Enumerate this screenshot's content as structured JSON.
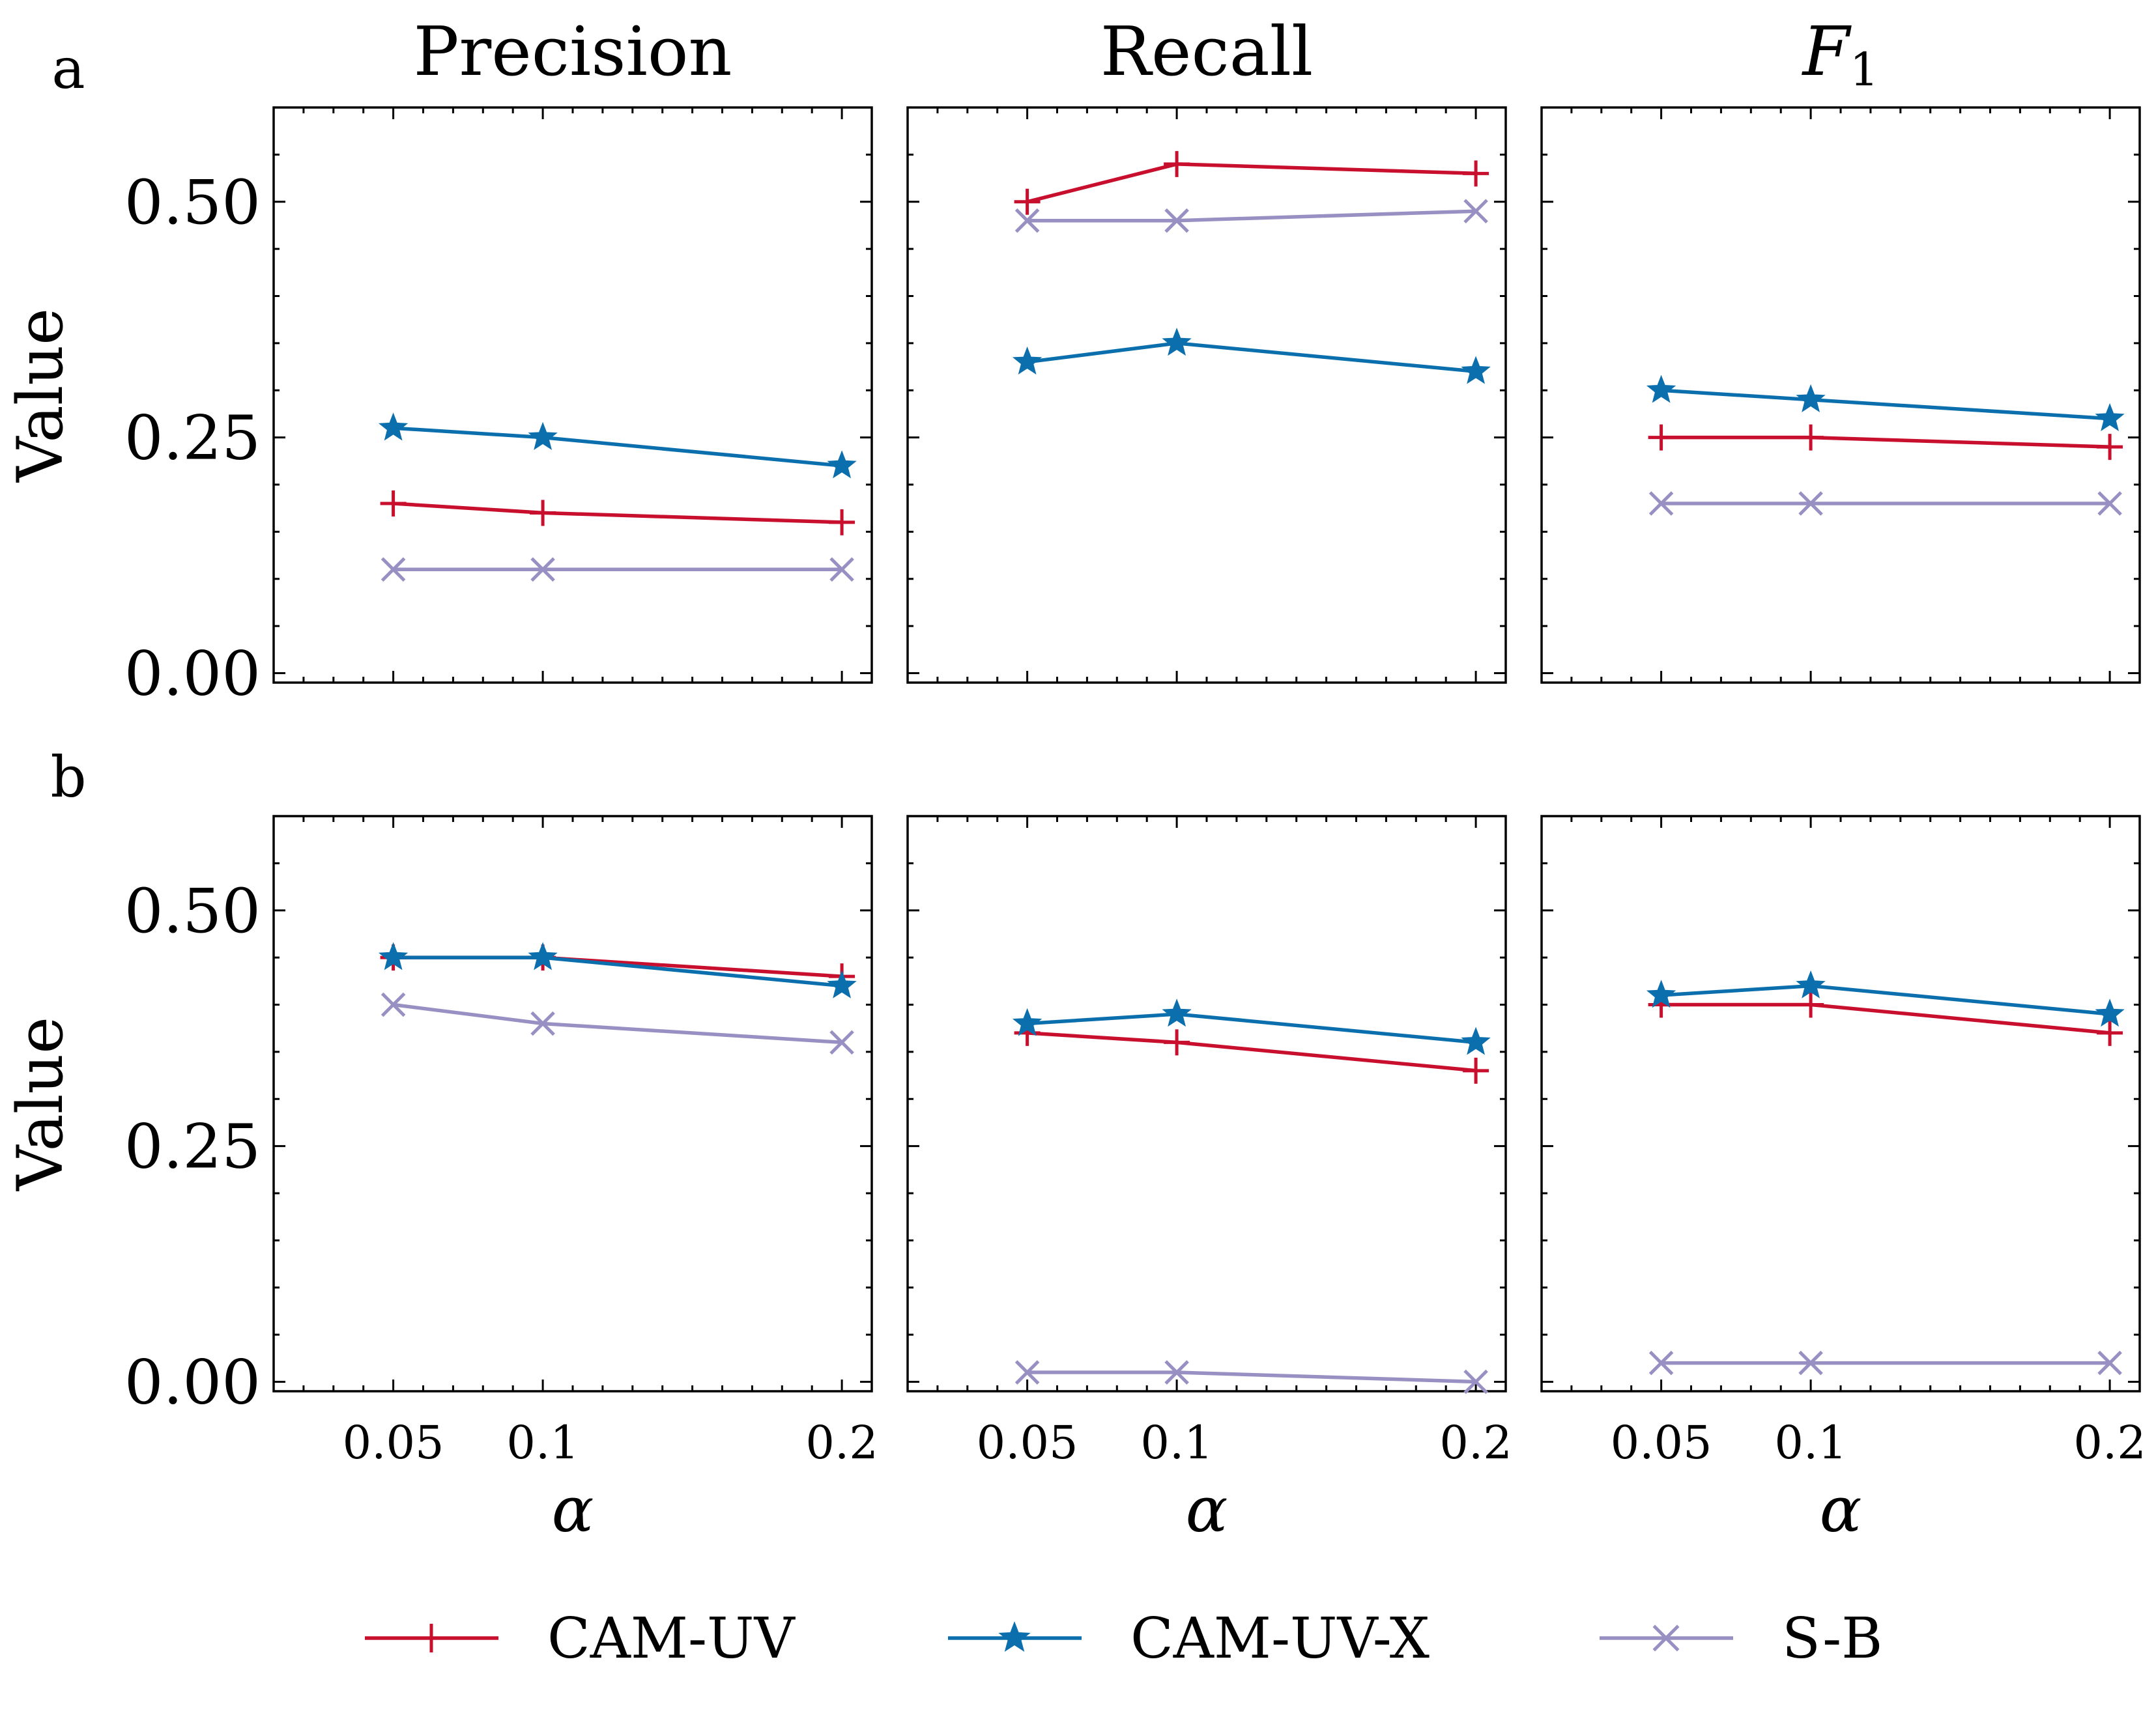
{
  "figure": {
    "row_labels": [
      "a",
      "b"
    ],
    "column_titles": [
      "Precision",
      "Recall",
      "F1"
    ],
    "ylabel": "Value",
    "xlabel": "α",
    "ytick_labels": [
      "0.00",
      "0.25",
      "0.50"
    ],
    "xtick_labels": [
      "0.05",
      "0.1",
      "0.2"
    ]
  },
  "legend": [
    {
      "name": "CAM-UV",
      "color": "#c8102e",
      "marker": "plus"
    },
    {
      "name": "CAM-UV-X",
      "color": "#0c6fad",
      "marker": "star"
    },
    {
      "name": "S-B",
      "color": "#9890c2",
      "marker": "x"
    }
  ],
  "chart_data": [
    {
      "type": "line",
      "row": "a",
      "title": "Precision",
      "xlabel": "α",
      "ylabel": "Value",
      "x": [
        0.05,
        0.1,
        0.2
      ],
      "xlim": [
        0.01,
        0.21
      ],
      "ylim": [
        -0.01,
        0.6
      ],
      "series": [
        {
          "name": "CAM-UV",
          "values": [
            0.18,
            0.17,
            0.16
          ]
        },
        {
          "name": "CAM-UV-X",
          "values": [
            0.26,
            0.25,
            0.22
          ]
        },
        {
          "name": "S-B",
          "values": [
            0.11,
            0.11,
            0.11
          ]
        }
      ]
    },
    {
      "type": "line",
      "row": "a",
      "title": "Recall",
      "xlabel": "α",
      "ylabel": "Value",
      "x": [
        0.05,
        0.1,
        0.2
      ],
      "xlim": [
        0.01,
        0.21
      ],
      "ylim": [
        -0.01,
        0.6
      ],
      "series": [
        {
          "name": "CAM-UV",
          "values": [
            0.5,
            0.54,
            0.53
          ]
        },
        {
          "name": "CAM-UV-X",
          "values": [
            0.33,
            0.35,
            0.32
          ]
        },
        {
          "name": "S-B",
          "values": [
            0.48,
            0.48,
            0.49
          ]
        }
      ]
    },
    {
      "type": "line",
      "row": "a",
      "title": "F1",
      "xlabel": "α",
      "ylabel": "Value",
      "x": [
        0.05,
        0.1,
        0.2
      ],
      "xlim": [
        0.01,
        0.21
      ],
      "ylim": [
        -0.01,
        0.6
      ],
      "series": [
        {
          "name": "CAM-UV",
          "values": [
            0.25,
            0.25,
            0.24
          ]
        },
        {
          "name": "CAM-UV-X",
          "values": [
            0.3,
            0.29,
            0.27
          ]
        },
        {
          "name": "S-B",
          "values": [
            0.18,
            0.18,
            0.18
          ]
        }
      ]
    },
    {
      "type": "line",
      "row": "b",
      "title": "Precision",
      "xlabel": "α",
      "ylabel": "Value",
      "x": [
        0.05,
        0.1,
        0.2
      ],
      "xlim": [
        0.01,
        0.21
      ],
      "ylim": [
        -0.01,
        0.6
      ],
      "series": [
        {
          "name": "CAM-UV",
          "values": [
            0.45,
            0.45,
            0.43
          ]
        },
        {
          "name": "CAM-UV-X",
          "values": [
            0.45,
            0.45,
            0.42
          ]
        },
        {
          "name": "S-B",
          "values": [
            0.4,
            0.38,
            0.36
          ]
        }
      ]
    },
    {
      "type": "line",
      "row": "b",
      "title": "Recall",
      "xlabel": "α",
      "ylabel": "Value",
      "x": [
        0.05,
        0.1,
        0.2
      ],
      "xlim": [
        0.01,
        0.21
      ],
      "ylim": [
        -0.01,
        0.6
      ],
      "series": [
        {
          "name": "CAM-UV",
          "values": [
            0.37,
            0.36,
            0.33
          ]
        },
        {
          "name": "CAM-UV-X",
          "values": [
            0.38,
            0.39,
            0.36
          ]
        },
        {
          "name": "S-B",
          "values": [
            0.01,
            0.01,
            0.0
          ]
        }
      ]
    },
    {
      "type": "line",
      "row": "b",
      "title": "F1",
      "xlabel": "α",
      "ylabel": "Value",
      "x": [
        0.05,
        0.1,
        0.2
      ],
      "xlim": [
        0.01,
        0.21
      ],
      "ylim": [
        -0.01,
        0.6
      ],
      "series": [
        {
          "name": "CAM-UV",
          "values": [
            0.4,
            0.4,
            0.37
          ]
        },
        {
          "name": "CAM-UV-X",
          "values": [
            0.41,
            0.42,
            0.39
          ]
        },
        {
          "name": "S-B",
          "values": [
            0.02,
            0.02,
            0.02
          ]
        }
      ]
    }
  ]
}
